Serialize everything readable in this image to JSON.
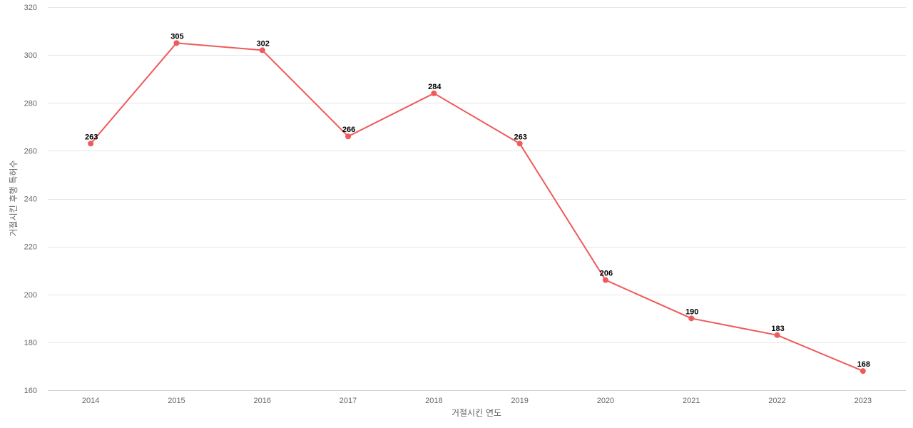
{
  "chart_data": {
    "type": "line",
    "title": "",
    "xlabel": "거절시킨 연도",
    "ylabel": "거절시킨 후행 특허수",
    "categories": [
      "2014",
      "2015",
      "2016",
      "2017",
      "2018",
      "2019",
      "2020",
      "2021",
      "2022",
      "2023"
    ],
    "series": [
      {
        "values": [
          263,
          305,
          302,
          266,
          284,
          263,
          206,
          190,
          183,
          168
        ],
        "color": "#ef5a5a"
      }
    ],
    "ylim": [
      160,
      320
    ],
    "yticks": [
      160,
      180,
      200,
      220,
      240,
      260,
      280,
      300,
      320
    ],
    "grid": true,
    "legend": "none",
    "data_labels": true
  }
}
